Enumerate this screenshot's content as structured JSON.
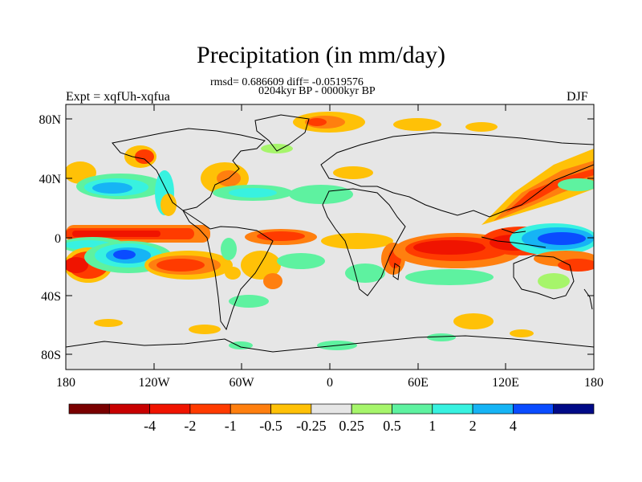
{
  "title": "Precipitation (in mm/day)",
  "stats": "rmsd= 0.686609 diff= -0.0519576",
  "period": "0204kyr BP - 0000kyr BP",
  "experiment": "Expt = xqfUh-xqfua",
  "season": "DJF",
  "lat_ticks": [
    "80N",
    "40N",
    "0",
    "40S",
    "80S"
  ],
  "lon_ticks": [
    "180",
    "120W",
    "60W",
    "0",
    "60E",
    "120E",
    "180"
  ],
  "colorbar": {
    "colors": [
      "#7a0000",
      "#c80000",
      "#f01400",
      "#ff3b00",
      "#ff7f0f",
      "#ffc107",
      "#e6e6e6",
      "#a6f56b",
      "#5ef2a0",
      "#38f2e0",
      "#16b4f5",
      "#0a4cff",
      "#000a87"
    ],
    "labels": [
      "-4",
      "-2",
      "-1",
      "-0.5",
      "-0.25",
      "0.25",
      "0.5",
      "1",
      "2",
      "4"
    ]
  },
  "colors": {
    "land_outline": "#000000",
    "background_field": "#e6e6e6"
  }
}
